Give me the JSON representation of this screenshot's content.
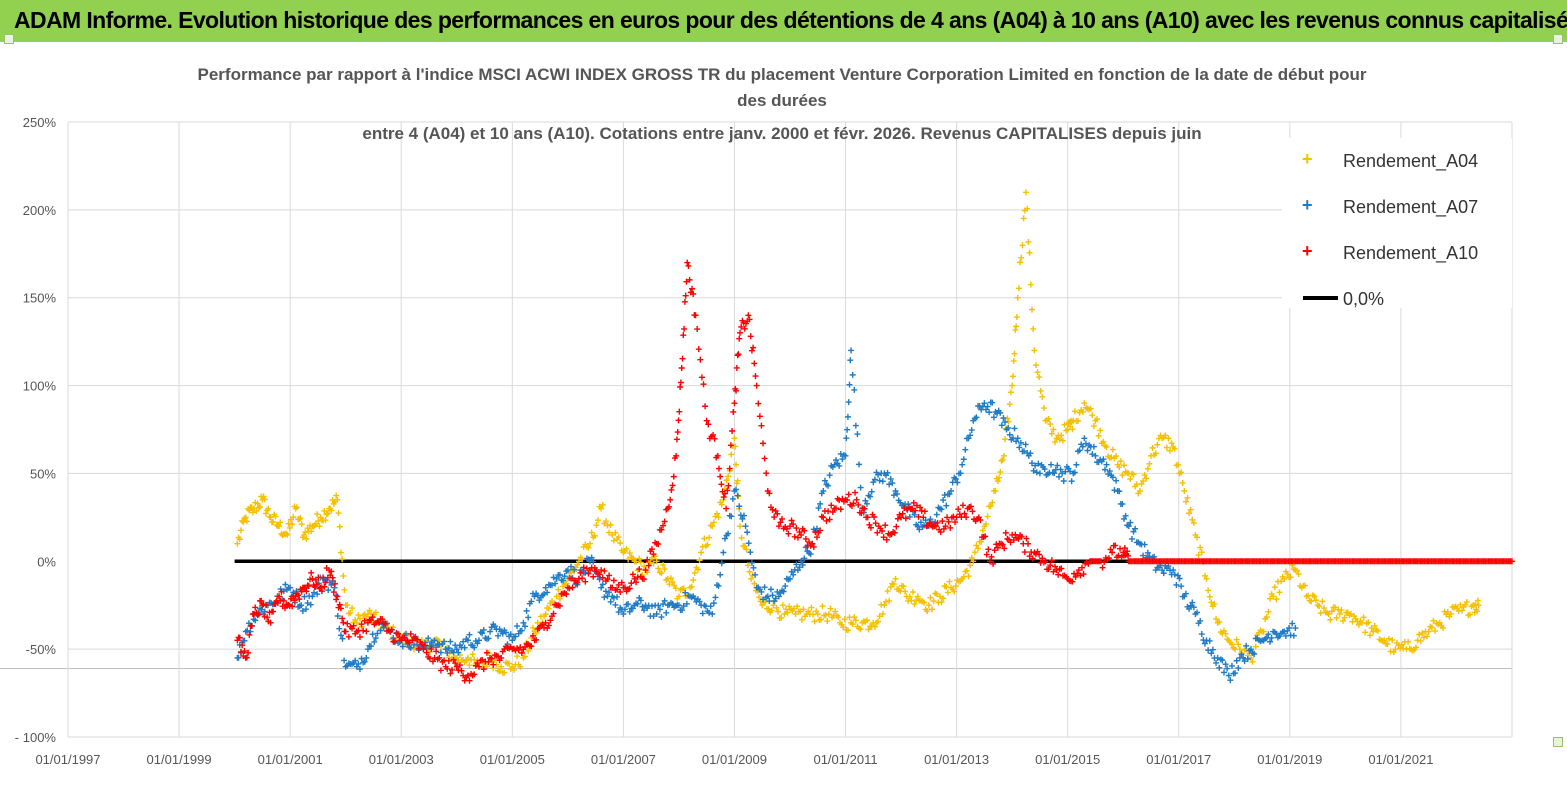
{
  "banner": {
    "title": "ADAM Informe. Evolution historique des performances en euros pour des détentions de 4 ans (A04) à 10 ans (A10) avec les revenus connus capitalisés"
  },
  "colors": {
    "banner": "#92d050",
    "a04": "#f5c000",
    "a07": "#1f7bc4",
    "a10": "#ff0000",
    "zero": "#000000",
    "grid": "#d9d9d9"
  },
  "chart_data": {
    "type": "scatter",
    "title": [
      "Performance par rapport à l'indice MSCI ACWI INDEX GROSS TR  du placement Venture Corporation Limited en fonction de la date de début pour",
      "des durées",
      "entre 4 (A04) et 10 ans (A10). Cotations entre janv. 2000 et févr. 2026. Revenus CAPITALISES depuis juin"
    ],
    "xlabel": "",
    "ylabel": "",
    "x_range": [
      1997.0,
      2023.0
    ],
    "ylim": [
      -100,
      250
    ],
    "y_ticks": [
      -100,
      -50,
      0,
      50,
      100,
      150,
      200,
      250
    ],
    "y_tick_labels": [
      "- 100%",
      "-50%",
      "0%",
      "50%",
      "100%",
      "150%",
      "200%",
      "250%"
    ],
    "x_ticks": [
      1997,
      1999,
      2001,
      2003,
      2005,
      2007,
      2009,
      2011,
      2013,
      2015,
      2017,
      2019,
      2021
    ],
    "x_tick_labels": [
      "01/01/1997",
      "01/01/1999",
      "01/01/2001",
      "01/01/2003",
      "01/01/2005",
      "01/01/2007",
      "01/01/2009",
      "01/01/2011",
      "01/01/2013",
      "01/01/2015",
      "01/01/2017",
      "01/01/2019",
      "01/01/2021"
    ],
    "legend_position": "top-right",
    "series": [
      {
        "name": "Rendement_A04",
        "marker": "+",
        "x": [
          2000.05,
          2000.2,
          2000.35,
          2000.5,
          2000.65,
          2000.8,
          2000.95,
          2001.1,
          2001.25,
          2001.4,
          2001.55,
          2001.7,
          2001.85,
          2002.0,
          2002.2,
          2002.4,
          2002.6,
          2002.8,
          2003.0,
          2003.2,
          2003.4,
          2003.6,
          2003.8,
          2004.0,
          2004.2,
          2004.4,
          2004.6,
          2004.8,
          2005.0,
          2005.2,
          2005.4,
          2005.6,
          2005.8,
          2006.0,
          2006.2,
          2006.4,
          2006.6,
          2006.8,
          2007.0,
          2007.2,
          2007.4,
          2007.6,
          2007.8,
          2008.0,
          2008.2,
          2008.4,
          2008.6,
          2008.8,
          2009.0,
          2009.1,
          2009.3,
          2009.5,
          2009.7,
          2009.9,
          2010.1,
          2010.3,
          2010.5,
          2010.7,
          2010.9,
          2011.1,
          2011.3,
          2011.5,
          2011.7,
          2011.9,
          2012.1,
          2012.3,
          2012.5,
          2012.7,
          2012.9,
          2013.1,
          2013.3,
          2013.5,
          2013.7,
          2013.85,
          2014.0,
          2014.1,
          2014.25,
          2014.4,
          2014.6,
          2014.8,
          2015.0,
          2015.1,
          2015.3,
          2015.5,
          2015.7,
          2015.9,
          2016.1,
          2016.3,
          2016.5,
          2016.7,
          2016.9,
          2017.1,
          2017.3,
          2017.5,
          2017.7,
          2017.9,
          2018.1,
          2018.3,
          2018.5,
          2018.7,
          2018.9,
          2019.1,
          2019.3,
          2019.5,
          2019.7,
          2019.9,
          2020.1,
          2020.3,
          2020.5,
          2020.7,
          2020.9,
          2021.1,
          2021.3,
          2021.5,
          2021.7,
          2021.9,
          2022.1,
          2022.3,
          2022.4
        ],
        "y": [
          10,
          25,
          30,
          35,
          25,
          20,
          15,
          30,
          15,
          20,
          25,
          30,
          35,
          -25,
          -35,
          -30,
          -35,
          -40,
          -45,
          -45,
          -50,
          -45,
          -50,
          -55,
          -55,
          -60,
          -55,
          -60,
          -60,
          -55,
          -40,
          -30,
          -20,
          -10,
          0,
          10,
          30,
          15,
          5,
          0,
          -5,
          0,
          -10,
          -20,
          -15,
          5,
          20,
          35,
          70,
          20,
          -10,
          -25,
          -25,
          -30,
          -30,
          -30,
          -30,
          -30,
          -35,
          -35,
          -35,
          -35,
          -25,
          -10,
          -20,
          -20,
          -25,
          -20,
          -15,
          -10,
          0,
          20,
          40,
          60,
          100,
          150,
          210,
          120,
          80,
          70,
          75,
          80,
          90,
          80,
          65,
          55,
          50,
          40,
          60,
          70,
          65,
          40,
          15,
          -10,
          -35,
          -45,
          -50,
          -55,
          -40,
          -20,
          -10,
          -5,
          -20,
          -25,
          -30,
          -30,
          -30,
          -35,
          -40,
          -45,
          -50,
          -50,
          -45,
          -40,
          -35,
          -30,
          -28,
          -25,
          -25
        ]
      },
      {
        "name": "Rendement_A07",
        "marker": "+",
        "x": [
          2000.05,
          2000.2,
          2000.4,
          2000.6,
          2000.8,
          2001.0,
          2001.2,
          2001.4,
          2001.6,
          2001.8,
          2002.0,
          2002.2,
          2002.4,
          2002.6,
          2002.8,
          2003.0,
          2003.2,
          2003.4,
          2003.6,
          2003.8,
          2004.0,
          2004.2,
          2004.4,
          2004.6,
          2004.8,
          2005.0,
          2005.2,
          2005.4,
          2005.6,
          2005.8,
          2006.0,
          2006.2,
          2006.4,
          2006.6,
          2006.8,
          2007.0,
          2007.2,
          2007.4,
          2007.6,
          2007.8,
          2008.0,
          2008.2,
          2008.4,
          2008.6,
          2008.8,
          2009.0,
          2009.2,
          2009.4,
          2009.6,
          2009.8,
          2010.0,
          2010.2,
          2010.4,
          2010.6,
          2010.8,
          2011.0,
          2011.1,
          2011.3,
          2011.5,
          2011.7,
          2011.9,
          2012.1,
          2012.3,
          2012.5,
          2012.7,
          2012.9,
          2013.1,
          2013.3,
          2013.5,
          2013.7,
          2013.9,
          2014.1,
          2014.3,
          2014.5,
          2014.7,
          2014.9,
          2015.1,
          2015.3,
          2015.5,
          2015.7,
          2015.9,
          2016.1,
          2016.3,
          2016.5,
          2016.7,
          2016.9,
          2017.1,
          2017.3,
          2017.5,
          2017.7,
          2017.9,
          2018.1,
          2018.3,
          2018.5,
          2018.7,
          2018.9,
          2019.1
        ],
        "y": [
          -55,
          -40,
          -30,
          -25,
          -20,
          -15,
          -25,
          -20,
          -10,
          -15,
          -60,
          -60,
          -50,
          -35,
          -40,
          -45,
          -45,
          -50,
          -45,
          -50,
          -50,
          -45,
          -45,
          -40,
          -40,
          -45,
          -35,
          -20,
          -15,
          -10,
          -5,
          -10,
          0,
          -15,
          -20,
          -30,
          -25,
          -25,
          -30,
          -25,
          -25,
          -20,
          -25,
          -30,
          5,
          40,
          20,
          -15,
          -20,
          -20,
          -10,
          0,
          10,
          40,
          55,
          60,
          120,
          30,
          45,
          50,
          40,
          30,
          20,
          20,
          30,
          40,
          55,
          80,
          90,
          85,
          75,
          70,
          60,
          50,
          55,
          50,
          50,
          70,
          60,
          55,
          40,
          20,
          10,
          0,
          -5,
          -5,
          -20,
          -30,
          -45,
          -55,
          -65,
          -55,
          -50,
          -45,
          -40,
          -40,
          -38
        ]
      },
      {
        "name": "Rendement_A10",
        "marker": "+",
        "x": [
          2000.05,
          2000.2,
          2000.35,
          2000.5,
          2000.65,
          2000.8,
          2000.95,
          2001.1,
          2001.25,
          2001.4,
          2001.55,
          2001.7,
          2001.85,
          2002.0,
          2002.2,
          2002.4,
          2002.6,
          2002.8,
          2003.0,
          2003.2,
          2003.4,
          2003.6,
          2003.8,
          2004.0,
          2004.2,
          2004.4,
          2004.6,
          2004.8,
          2005.0,
          2005.2,
          2005.4,
          2005.6,
          2005.8,
          2006.0,
          2006.2,
          2006.4,
          2006.6,
          2006.8,
          2007.0,
          2007.2,
          2007.4,
          2007.6,
          2007.8,
          2007.95,
          2008.05,
          2008.15,
          2008.3,
          2008.5,
          2008.7,
          2008.85,
          2009.0,
          2009.1,
          2009.25,
          2009.4,
          2009.6,
          2009.8,
          2010.0,
          2010.2,
          2010.4,
          2010.6,
          2010.8,
          2011.0,
          2011.2,
          2011.4,
          2011.6,
          2011.8,
          2012.0,
          2012.2,
          2012.4,
          2012.6,
          2012.8,
          2013.0,
          2013.2,
          2013.4,
          2013.6,
          2013.8,
          2014.0,
          2014.2,
          2014.4,
          2014.6,
          2014.8,
          2015.0,
          2015.2,
          2015.4,
          2015.6,
          2015.8,
          2016.0,
          2016.1,
          2016.5,
          2017.0,
          2017.5,
          2018.0,
          2018.5,
          2019.0,
          2019.5,
          2020.0,
          2020.5,
          2021.0,
          2021.5,
          2022.0,
          2022.5,
          2023.0
        ],
        "y": [
          -45,
          -55,
          -30,
          -25,
          -35,
          -20,
          -25,
          -20,
          -15,
          -10,
          -15,
          -5,
          -20,
          -40,
          -40,
          -35,
          -35,
          -40,
          -45,
          -45,
          -50,
          -55,
          -60,
          -60,
          -65,
          -60,
          -55,
          -55,
          -50,
          -50,
          -45,
          -35,
          -25,
          -15,
          -10,
          -5,
          -5,
          -15,
          -15,
          -10,
          -5,
          10,
          30,
          60,
          110,
          170,
          140,
          80,
          60,
          30,
          90,
          130,
          140,
          100,
          40,
          20,
          20,
          15,
          10,
          25,
          30,
          35,
          35,
          25,
          20,
          15,
          25,
          30,
          25,
          20,
          20,
          25,
          30,
          25,
          0,
          10,
          15,
          10,
          5,
          0,
          -5,
          -10,
          -5,
          0,
          0,
          5,
          5,
          0,
          0,
          0,
          0,
          0,
          0,
          0,
          0,
          0,
          0,
          0,
          0,
          0,
          0,
          0
        ]
      }
    ],
    "zero_line": {
      "name": "0,0%",
      "x": [
        2000.0,
        2016.1
      ],
      "y": [
        0,
        0
      ]
    }
  }
}
